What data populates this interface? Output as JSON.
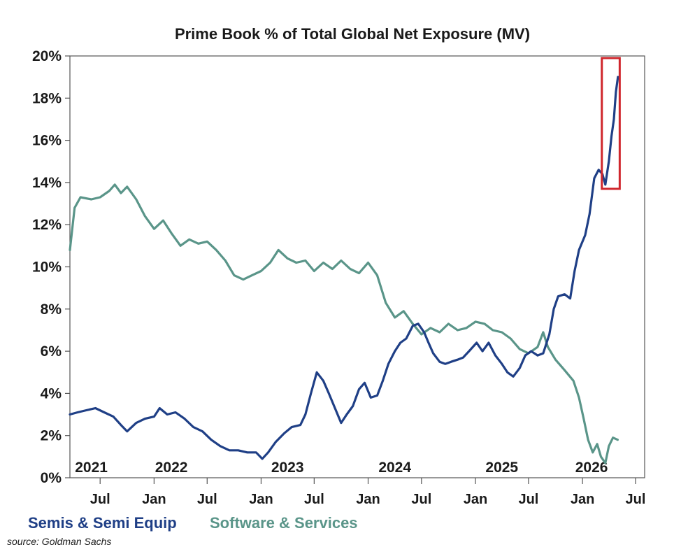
{
  "chart_data": {
    "type": "line",
    "title": "Prime Book % of Total Global Net Exposure (MV)",
    "source": "source: Goldman Sachs",
    "y_unit": "%",
    "ylim": [
      0,
      20
    ],
    "yticks": [
      0,
      2,
      4,
      6,
      8,
      10,
      12,
      14,
      16,
      18,
      20
    ],
    "ytick_labels": [
      "0%",
      "2%",
      "4%",
      "6%",
      "8%",
      "10%",
      "12%",
      "14%",
      "16%",
      "18%",
      "20%"
    ],
    "xlim": [
      "2021-03-20",
      "2026-08-01"
    ],
    "xticks": [
      {
        "date": "2021-07-01",
        "label": "Jul"
      },
      {
        "date": "2022-01-01",
        "label": "Jan"
      },
      {
        "date": "2022-07-01",
        "label": "Jul"
      },
      {
        "date": "2023-01-01",
        "label": "Jan"
      },
      {
        "date": "2023-07-01",
        "label": "Jul"
      },
      {
        "date": "2024-01-01",
        "label": "Jan"
      },
      {
        "date": "2024-07-01",
        "label": "Jul"
      },
      {
        "date": "2025-01-01",
        "label": "Jan"
      },
      {
        "date": "2025-07-01",
        "label": "Jul"
      },
      {
        "date": "2026-01-01",
        "label": "Jan"
      },
      {
        "date": "2026-07-01",
        "label": "Jul"
      }
    ],
    "year_labels": [
      {
        "date": "2021-06-01",
        "label": "2021"
      },
      {
        "date": "2022-03-01",
        "label": "2022"
      },
      {
        "date": "2023-04-01",
        "label": "2023"
      },
      {
        "date": "2024-04-01",
        "label": "2024"
      },
      {
        "date": "2025-04-01",
        "label": "2025"
      },
      {
        "date": "2026-02-01",
        "label": "2026"
      }
    ],
    "grid": false,
    "legend_position": "bottom-left",
    "highlight_box": {
      "x_from": "2026-03-08",
      "x_to": "2026-05-08",
      "y_from": 13.7,
      "y_to": 19.9,
      "color": "#d0272d"
    },
    "series": [
      {
        "name": "Semis & Semi Equip",
        "color": "#1f3f86",
        "points": [
          [
            "2021-03-20",
            3.0
          ],
          [
            "2021-04-15",
            3.1
          ],
          [
            "2021-05-15",
            3.2
          ],
          [
            "2021-06-15",
            3.3
          ],
          [
            "2021-07-15",
            3.1
          ],
          [
            "2021-08-15",
            2.9
          ],
          [
            "2021-09-10",
            2.5
          ],
          [
            "2021-10-01",
            2.2
          ],
          [
            "2021-11-01",
            2.6
          ],
          [
            "2021-12-01",
            2.8
          ],
          [
            "2022-01-01",
            2.9
          ],
          [
            "2022-01-20",
            3.3
          ],
          [
            "2022-02-15",
            3.0
          ],
          [
            "2022-03-15",
            3.1
          ],
          [
            "2022-04-15",
            2.8
          ],
          [
            "2022-05-15",
            2.4
          ],
          [
            "2022-06-15",
            2.2
          ],
          [
            "2022-07-15",
            1.8
          ],
          [
            "2022-08-15",
            1.5
          ],
          [
            "2022-09-15",
            1.3
          ],
          [
            "2022-10-15",
            1.3
          ],
          [
            "2022-11-15",
            1.2
          ],
          [
            "2022-12-15",
            1.2
          ],
          [
            "2023-01-05",
            0.9
          ],
          [
            "2023-01-25",
            1.2
          ],
          [
            "2023-02-20",
            1.7
          ],
          [
            "2023-03-20",
            2.1
          ],
          [
            "2023-04-15",
            2.4
          ],
          [
            "2023-05-15",
            2.5
          ],
          [
            "2023-06-01",
            3.0
          ],
          [
            "2023-06-20",
            4.0
          ],
          [
            "2023-07-10",
            5.0
          ],
          [
            "2023-08-01",
            4.6
          ],
          [
            "2023-08-20",
            4.0
          ],
          [
            "2023-09-10",
            3.3
          ],
          [
            "2023-10-01",
            2.6
          ],
          [
            "2023-10-20",
            3.0
          ],
          [
            "2023-11-10",
            3.4
          ],
          [
            "2023-12-01",
            4.2
          ],
          [
            "2023-12-20",
            4.5
          ],
          [
            "2024-01-10",
            3.8
          ],
          [
            "2024-02-01",
            3.9
          ],
          [
            "2024-02-20",
            4.6
          ],
          [
            "2024-03-10",
            5.4
          ],
          [
            "2024-04-01",
            6.0
          ],
          [
            "2024-04-20",
            6.4
          ],
          [
            "2024-05-10",
            6.6
          ],
          [
            "2024-06-01",
            7.2
          ],
          [
            "2024-06-20",
            7.3
          ],
          [
            "2024-07-10",
            6.9
          ],
          [
            "2024-07-25",
            6.4
          ],
          [
            "2024-08-10",
            5.9
          ],
          [
            "2024-09-01",
            5.5
          ],
          [
            "2024-09-20",
            5.4
          ],
          [
            "2024-10-10",
            5.5
          ],
          [
            "2024-11-01",
            5.6
          ],
          [
            "2024-11-20",
            5.7
          ],
          [
            "2024-12-10",
            6.0
          ],
          [
            "2025-01-05",
            6.4
          ],
          [
            "2025-01-25",
            6.0
          ],
          [
            "2025-02-15",
            6.4
          ],
          [
            "2025-03-10",
            5.8
          ],
          [
            "2025-04-01",
            5.4
          ],
          [
            "2025-04-20",
            5.0
          ],
          [
            "2025-05-10",
            4.8
          ],
          [
            "2025-06-01",
            5.2
          ],
          [
            "2025-06-20",
            5.8
          ],
          [
            "2025-07-10",
            6.0
          ],
          [
            "2025-08-01",
            5.8
          ],
          [
            "2025-08-20",
            5.9
          ],
          [
            "2025-09-10",
            6.8
          ],
          [
            "2025-09-25",
            8.0
          ],
          [
            "2025-10-10",
            8.6
          ],
          [
            "2025-11-01",
            8.7
          ],
          [
            "2025-11-20",
            8.5
          ],
          [
            "2025-12-05",
            9.8
          ],
          [
            "2025-12-20",
            10.8
          ],
          [
            "2026-01-10",
            11.5
          ],
          [
            "2026-01-25",
            12.5
          ],
          [
            "2026-02-10",
            14.2
          ],
          [
            "2026-02-25",
            14.6
          ],
          [
            "2026-03-10",
            14.4
          ],
          [
            "2026-03-20",
            13.9
          ],
          [
            "2026-04-01",
            15.0
          ],
          [
            "2026-04-10",
            16.2
          ],
          [
            "2026-04-18",
            17.0
          ],
          [
            "2026-04-25",
            18.3
          ],
          [
            "2026-05-02",
            19.0
          ]
        ]
      },
      {
        "name": "Software & Services",
        "color": "#5a9589",
        "points": [
          [
            "2021-03-20",
            10.8
          ],
          [
            "2021-04-05",
            12.8
          ],
          [
            "2021-04-25",
            13.3
          ],
          [
            "2021-06-01",
            13.2
          ],
          [
            "2021-07-01",
            13.3
          ],
          [
            "2021-08-01",
            13.6
          ],
          [
            "2021-08-20",
            13.9
          ],
          [
            "2021-09-10",
            13.5
          ],
          [
            "2021-10-01",
            13.8
          ],
          [
            "2021-11-01",
            13.2
          ],
          [
            "2021-12-01",
            12.4
          ],
          [
            "2022-01-01",
            11.8
          ],
          [
            "2022-02-01",
            12.2
          ],
          [
            "2022-03-01",
            11.6
          ],
          [
            "2022-04-01",
            11.0
          ],
          [
            "2022-05-01",
            11.3
          ],
          [
            "2022-06-01",
            11.1
          ],
          [
            "2022-07-01",
            11.2
          ],
          [
            "2022-08-01",
            10.8
          ],
          [
            "2022-09-01",
            10.3
          ],
          [
            "2022-10-01",
            9.6
          ],
          [
            "2022-11-01",
            9.4
          ],
          [
            "2022-12-01",
            9.6
          ],
          [
            "2023-01-01",
            9.8
          ],
          [
            "2023-02-01",
            10.2
          ],
          [
            "2023-03-01",
            10.8
          ],
          [
            "2023-04-01",
            10.4
          ],
          [
            "2023-05-01",
            10.2
          ],
          [
            "2023-06-01",
            10.3
          ],
          [
            "2023-07-01",
            9.8
          ],
          [
            "2023-08-01",
            10.2
          ],
          [
            "2023-09-01",
            9.9
          ],
          [
            "2023-10-01",
            10.3
          ],
          [
            "2023-11-01",
            9.9
          ],
          [
            "2023-12-01",
            9.7
          ],
          [
            "2024-01-01",
            10.2
          ],
          [
            "2024-02-01",
            9.6
          ],
          [
            "2024-03-01",
            8.3
          ],
          [
            "2024-04-01",
            7.6
          ],
          [
            "2024-05-01",
            7.9
          ],
          [
            "2024-06-01",
            7.3
          ],
          [
            "2024-07-01",
            6.8
          ],
          [
            "2024-08-01",
            7.1
          ],
          [
            "2024-09-01",
            6.9
          ],
          [
            "2024-10-01",
            7.3
          ],
          [
            "2024-11-01",
            7.0
          ],
          [
            "2024-12-01",
            7.1
          ],
          [
            "2025-01-01",
            7.4
          ],
          [
            "2025-02-01",
            7.3
          ],
          [
            "2025-03-01",
            7.0
          ],
          [
            "2025-04-01",
            6.9
          ],
          [
            "2025-05-01",
            6.6
          ],
          [
            "2025-06-01",
            6.1
          ],
          [
            "2025-07-01",
            5.9
          ],
          [
            "2025-08-01",
            6.2
          ],
          [
            "2025-08-20",
            6.9
          ],
          [
            "2025-09-05",
            6.2
          ],
          [
            "2025-10-01",
            5.6
          ],
          [
            "2025-11-01",
            5.1
          ],
          [
            "2025-12-01",
            4.6
          ],
          [
            "2025-12-20",
            3.8
          ],
          [
            "2026-01-05",
            2.8
          ],
          [
            "2026-01-20",
            1.8
          ],
          [
            "2026-02-05",
            1.2
          ],
          [
            "2026-02-20",
            1.6
          ],
          [
            "2026-03-05",
            1.0
          ],
          [
            "2026-03-20",
            0.7
          ],
          [
            "2026-04-01",
            1.5
          ],
          [
            "2026-04-15",
            1.9
          ],
          [
            "2026-05-01",
            1.8
          ]
        ]
      }
    ]
  }
}
